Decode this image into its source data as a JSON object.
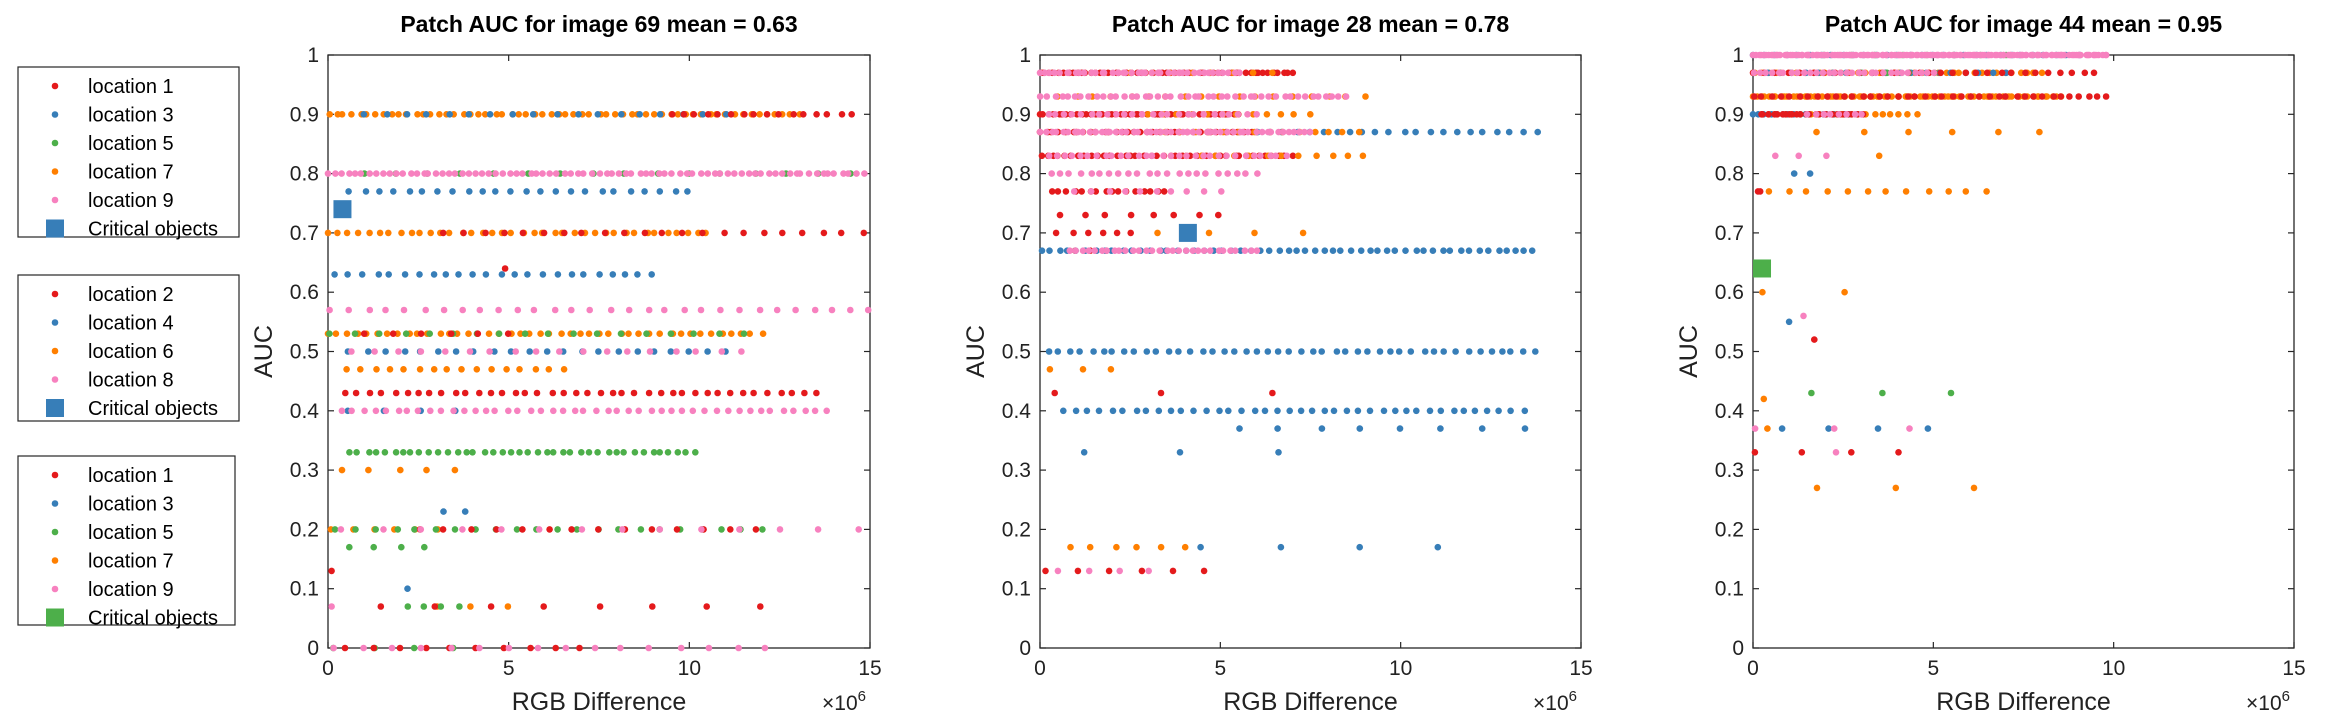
{
  "colors": {
    "location 1": "#e41a1c",
    "location 2": "#e41a1c",
    "location 3": "#377eb8",
    "location 4": "#377eb8",
    "location 5": "#4daf4a",
    "location 6": "#ff7f00",
    "location 7": "#ff7f00",
    "location 8": "#f781bf",
    "location 9": "#f781bf"
  },
  "legends": [
    {
      "entries": [
        "location 1",
        "location 3",
        "location 5",
        "location 7",
        "location 9"
      ],
      "critical": {
        "label": "Critical objects",
        "color": "#377eb8"
      }
    },
    {
      "entries": [
        "location 2",
        "location 4",
        "location 6",
        "location 8"
      ],
      "critical": {
        "label": "Critical objects",
        "color": "#377eb8"
      }
    },
    {
      "entries": [
        "location 1",
        "location 3",
        "location 5",
        "location 7",
        "location 9"
      ],
      "critical": {
        "label": "Critical objects",
        "color": "#4daf4a"
      }
    }
  ],
  "chart_data": [
    {
      "type": "scatter",
      "title": "Patch AUC for image 69 mean = 0.63",
      "xlabel": "RGB Difference",
      "ylabel": "AUC",
      "x_exponent": "×10^6",
      "x_ticks": [
        0,
        5,
        10,
        15
      ],
      "y_ticks": [
        0,
        0.1,
        0.2,
        0.3,
        0.4,
        0.5,
        0.6,
        0.7,
        0.8,
        0.9,
        1
      ],
      "xlim": [
        0,
        15
      ],
      "ylim": [
        0,
        1
      ],
      "critical": {
        "x": 0.4,
        "y": 0.74,
        "color": "#377eb8"
      },
      "series": [
        {
          "name": "location 7",
          "bands": [
            [
              0.9,
              0.0,
              13.0,
              60
            ],
            [
              0.7,
              0.0,
              10.5,
              38
            ],
            [
              0.53,
              0.0,
              12.0,
              44
            ],
            [
              0.47,
              0.5,
              6.5,
              16
            ],
            [
              0.3,
              0.4,
              3.5,
              5
            ],
            [
              0.2,
              0.1,
              3.0,
              6
            ],
            [
              0.07,
              3.0,
              5.0,
              3
            ]
          ]
        },
        {
          "name": "location 3",
          "bands": [
            [
              0.9,
              1.0,
              11.0,
              18
            ],
            [
              0.77,
              0.6,
              10.0,
              24
            ],
            [
              0.63,
              0.2,
              9.0,
              24
            ],
            [
              0.5,
              0.6,
              11.0,
              22
            ],
            [
              0.4,
              0.6,
              3.5,
              4
            ],
            [
              0.23,
              3.2,
              3.8,
              2
            ],
            [
              0.1,
              2.2,
              2.2,
              1
            ]
          ]
        },
        {
          "name": "location 5",
          "bands": [
            [
              0.8,
              1.0,
              14.5,
              16
            ],
            [
              0.53,
              0.1,
              11.5,
              18
            ],
            [
              0.33,
              0.6,
              10.2,
              40
            ],
            [
              0.2,
              0.2,
              12.0,
              22
            ],
            [
              0.17,
              0.6,
              2.7,
              4
            ],
            [
              0.07,
              2.2,
              3.6,
              4
            ],
            [
              0.0,
              0.2,
              3.5,
              4
            ]
          ]
        },
        {
          "name": "location 1",
          "bands": [
            [
              0.9,
              9.5,
              14.5,
              16
            ],
            [
              0.7,
              3.2,
              14.8,
              22
            ],
            [
              0.64,
              4.9,
              4.9,
              1
            ],
            [
              0.53,
              1.0,
              5.0,
              6
            ],
            [
              0.43,
              0.5,
              13.5,
              40
            ],
            [
              0.2,
              2.5,
              11.8,
              14
            ],
            [
              0.13,
              0.1,
              0.1,
              1
            ],
            [
              0.07,
              1.5,
              12.0,
              8
            ],
            [
              0.0,
              0.5,
              7.0,
              10
            ]
          ]
        },
        {
          "name": "location 9",
          "bands": [
            [
              0.8,
              0.0,
              14.8,
              80
            ],
            [
              0.57,
              0.1,
              15.0,
              30
            ],
            [
              0.5,
              0.7,
              11.5,
              18
            ],
            [
              0.4,
              0.4,
              13.8,
              45
            ],
            [
              0.2,
              0.4,
              14.7,
              14
            ],
            [
              0.07,
              0.1,
              0.1,
              1
            ],
            [
              0.0,
              0.2,
              12.1,
              16
            ]
          ]
        }
      ]
    },
    {
      "type": "scatter",
      "title": "Patch AUC for image 28 mean = 0.78",
      "xlabel": "RGB Difference",
      "ylabel": "AUC",
      "x_exponent": "×10^6",
      "x_ticks": [
        0,
        5,
        10,
        15
      ],
      "y_ticks": [
        0,
        0.1,
        0.2,
        0.3,
        0.4,
        0.5,
        0.6,
        0.7,
        0.8,
        0.9,
        1
      ],
      "xlim": [
        0,
        15
      ],
      "ylim": [
        0,
        1
      ],
      "critical": {
        "x": 4.1,
        "y": 0.7,
        "color": "#377eb8"
      },
      "series": [
        {
          "name": "location 2",
          "bands": [
            [
              0.97,
              0.0,
              7.0,
              55
            ],
            [
              0.9,
              0.0,
              5.5,
              45
            ],
            [
              0.87,
              0.0,
              6.0,
              35
            ],
            [
              0.83,
              0.0,
              7.0,
              40
            ],
            [
              0.77,
              0.3,
              3.5,
              16
            ],
            [
              0.73,
              0.6,
              5.0,
              8
            ],
            [
              0.7,
              0.5,
              2.5,
              6
            ],
            [
              0.67,
              1.0,
              1.8,
              3
            ],
            [
              0.43,
              0.4,
              6.4,
              3
            ],
            [
              0.13,
              0.2,
              4.6,
              6
            ]
          ]
        },
        {
          "name": "location 4",
          "bands": [
            [
              0.87,
              6.0,
              13.8,
              22
            ],
            [
              0.67,
              0.0,
              13.7,
              55
            ],
            [
              0.5,
              0.2,
              13.7,
              45
            ],
            [
              0.4,
              0.7,
              13.4,
              40
            ],
            [
              0.37,
              5.5,
              13.4,
              8
            ],
            [
              0.33,
              1.2,
              6.6,
              3
            ],
            [
              0.17,
              4.5,
              11.0,
              4
            ]
          ]
        },
        {
          "name": "location 6",
          "bands": [
            [
              0.97,
              2.5,
              6.5,
              8
            ],
            [
              0.93,
              0.5,
              9.0,
              18
            ],
            [
              0.9,
              3.0,
              7.5,
              12
            ],
            [
              0.87,
              3.5,
              8.8,
              14
            ],
            [
              0.83,
              4.0,
              9.0,
              12
            ],
            [
              0.7,
              3.3,
              7.3,
              4
            ],
            [
              0.47,
              0.3,
              2.0,
              3
            ],
            [
              0.17,
              0.8,
              4.0,
              6
            ]
          ]
        },
        {
          "name": "location 8",
          "bands": [
            [
              0.97,
              0.0,
              5.5,
              40
            ],
            [
              0.93,
              0.0,
              8.5,
              45
            ],
            [
              0.9,
              0.2,
              6.0,
              25
            ],
            [
              0.87,
              0.0,
              7.5,
              50
            ],
            [
              0.83,
              0.2,
              6.8,
              30
            ],
            [
              0.8,
              0.3,
              6.0,
              22
            ],
            [
              0.77,
              1.0,
              5.0,
              10
            ],
            [
              0.67,
              0.8,
              6.0,
              30
            ],
            [
              0.13,
              0.5,
              3.0,
              4
            ]
          ]
        }
      ]
    },
    {
      "type": "scatter",
      "title": "Patch AUC for image 44 mean = 0.95",
      "xlabel": "RGB Difference",
      "ylabel": "AUC",
      "x_exponent": "×10^6",
      "x_ticks": [
        0,
        5,
        10,
        15
      ],
      "y_ticks": [
        0,
        0.1,
        0.2,
        0.3,
        0.4,
        0.5,
        0.6,
        0.7,
        0.8,
        0.9,
        1
      ],
      "xlim": [
        0,
        15
      ],
      "ylim": [
        0,
        1
      ],
      "critical": {
        "x": 0.25,
        "y": 0.64,
        "color": "#4daf4a"
      },
      "series": [
        {
          "name": "location 7",
          "bands": [
            [
              0.97,
              0.0,
              8.0,
              40
            ],
            [
              0.93,
              0.0,
              8.5,
              80
            ],
            [
              0.9,
              0.2,
              4.5,
              20
            ],
            [
              0.87,
              1.8,
              8.0,
              6
            ],
            [
              0.83,
              3.5,
              3.5,
              1
            ],
            [
              0.77,
              0.4,
              6.5,
              12
            ],
            [
              0.6,
              0.3,
              2.5,
              2
            ],
            [
              0.42,
              0.3,
              0.3,
              1
            ],
            [
              0.27,
              1.8,
              6.1,
              3
            ],
            [
              0.37,
              0.4,
              0.4,
              1
            ]
          ]
        },
        {
          "name": "location 3",
          "bands": [
            [
              1.0,
              0.0,
              9.0,
              30
            ],
            [
              0.97,
              0.0,
              7.0,
              20
            ],
            [
              0.9,
              0.0,
              3.0,
              20
            ],
            [
              0.8,
              1.2,
              1.6,
              2
            ],
            [
              0.55,
              1.0,
              1.0,
              1
            ],
            [
              0.37,
              0.8,
              4.8,
              4
            ]
          ]
        },
        {
          "name": "location 5",
          "bands": [
            [
              1.0,
              2.0,
              7.0,
              8
            ],
            [
              0.97,
              3.0,
              5.0,
              4
            ],
            [
              0.43,
              1.6,
              5.5,
              3
            ]
          ]
        },
        {
          "name": "location 1",
          "bands": [
            [
              0.97,
              0.0,
              9.5,
              30
            ],
            [
              0.93,
              0.0,
              9.8,
              40
            ],
            [
              0.9,
              0.2,
              3.0,
              25
            ],
            [
              0.77,
              0.1,
              0.2,
              2
            ],
            [
              0.52,
              1.7,
              1.7,
              1
            ],
            [
              0.33,
              0.0,
              4.0,
              4
            ]
          ]
        },
        {
          "name": "location 9",
          "bands": [
            [
              1.0,
              0.0,
              9.8,
              150
            ],
            [
              0.97,
              0.0,
              5.0,
              30
            ],
            [
              0.9,
              1.5,
              3.0,
              8
            ],
            [
              0.83,
              0.6,
              2.0,
              3
            ],
            [
              0.56,
              1.4,
              1.4,
              1
            ],
            [
              0.37,
              0.1,
              4.3,
              3
            ],
            [
              0.33,
              2.3,
              2.3,
              1
            ]
          ]
        }
      ]
    }
  ]
}
